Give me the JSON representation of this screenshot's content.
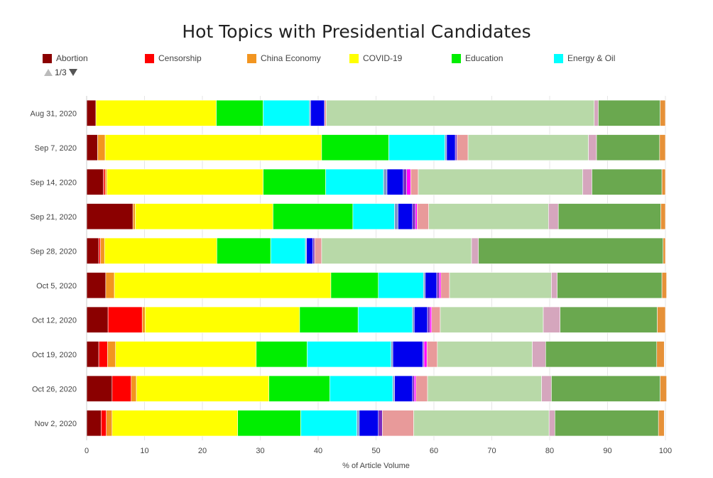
{
  "chart_data": {
    "type": "bar",
    "orientation": "horizontal",
    "stacked": true,
    "title": "Hot Topics with Presidential Candidates",
    "xlabel": "% of Article Volume",
    "ylabel": "",
    "xlim": [
      0,
      100
    ],
    "xticks": [
      0,
      10,
      20,
      30,
      40,
      50,
      60,
      70,
      80,
      90,
      100
    ],
    "legend_position": "top",
    "legend_page": "1/3",
    "categories": [
      "Aug 31, 2020",
      "Sep 7, 2020",
      "Sep 14, 2020",
      "Sep 21, 2020",
      "Sep 28, 2020",
      "Oct 5, 2020",
      "Oct 12, 2020",
      "Oct 19, 2020",
      "Oct 26, 2020",
      "Nov 2, 2020"
    ],
    "series": [
      {
        "name": "Abortion",
        "color": "#8b0000",
        "values": [
          1.6,
          1.9,
          2.9,
          8.0,
          2.1,
          3.3,
          3.7,
          2.1,
          4.4,
          2.5
        ]
      },
      {
        "name": "Censorship",
        "color": "#ff0000",
        "values": [
          0,
          0,
          0.3,
          0,
          0.3,
          0,
          5.9,
          1.5,
          3.3,
          0.9
        ]
      },
      {
        "name": "China Economy",
        "color": "#f29520",
        "values": [
          0,
          1.3,
          0.3,
          0.4,
          0.7,
          1.5,
          0.5,
          1.4,
          0.9,
          1.0
        ]
      },
      {
        "name": "COVID-19",
        "color": "#ffff00",
        "values": [
          20.8,
          37.4,
          27.0,
          23.8,
          19.4,
          37.4,
          26.7,
          24.3,
          22.9,
          21.7
        ]
      },
      {
        "name": "Education",
        "color": "#00ee00",
        "values": [
          8.1,
          11.6,
          10.8,
          13.8,
          9.3,
          8.2,
          10.1,
          8.8,
          10.5,
          10.9
        ]
      },
      {
        "name": "Energy & Oil",
        "color": "#00ffff",
        "values": [
          8.0,
          9.7,
          10.0,
          7.2,
          6.0,
          7.8,
          9.4,
          14.5,
          10.9,
          9.7
        ]
      },
      {
        "name": "",
        "color": "#7f95c8",
        "values": [
          0.2,
          0.3,
          0.6,
          0.6,
          0.2,
          0.3,
          0.3,
          0.3,
          0.3,
          0.4
        ]
      },
      {
        "name": "",
        "color": "#0000ee",
        "values": [
          2.4,
          1.5,
          2.8,
          2.5,
          1.1,
          2.0,
          2.3,
          5.2,
          3.1,
          3.3
        ]
      },
      {
        "name": "",
        "color": "#7b2cbf",
        "values": [
          0,
          0.3,
          0.6,
          0.5,
          0.3,
          0.4,
          0.4,
          0.2,
          0.3,
          0.7
        ]
      },
      {
        "name": "",
        "color": "#ff00ff",
        "values": [
          0,
          0,
          0.7,
          0.3,
          0,
          0.3,
          0.3,
          0.5,
          0.3,
          0
        ]
      },
      {
        "name": "",
        "color": "#e89a9a",
        "values": [
          0.3,
          1.9,
          1.3,
          2.0,
          1.2,
          1.5,
          1.5,
          1.8,
          2.0,
          5.4
        ]
      },
      {
        "name": "",
        "color": "#b8d9a8",
        "values": [
          46.3,
          20.8,
          28.4,
          20.7,
          25.9,
          17.6,
          17.8,
          16.4,
          19.7,
          23.4
        ]
      },
      {
        "name": "",
        "color": "#d5a6bd",
        "values": [
          0.7,
          1.4,
          1.6,
          1.7,
          1.2,
          1.0,
          2.9,
          2.3,
          1.7,
          1.0
        ]
      },
      {
        "name": "",
        "color": "#6aa84f",
        "values": [
          10.7,
          10.9,
          12.1,
          17.7,
          31.9,
          18.1,
          16.8,
          19.2,
          18.8,
          17.9
        ]
      },
      {
        "name": "",
        "color": "#e69138",
        "values": [
          0.9,
          1.0,
          0.6,
          0.8,
          0.4,
          0.8,
          1.4,
          1.3,
          1.1,
          1.0
        ]
      }
    ]
  },
  "legend_items": [
    "Abortion",
    "Censorship",
    "China Economy",
    "COVID-19",
    "Education",
    "Energy & Oil"
  ],
  "pager": {
    "label": "1/3"
  }
}
